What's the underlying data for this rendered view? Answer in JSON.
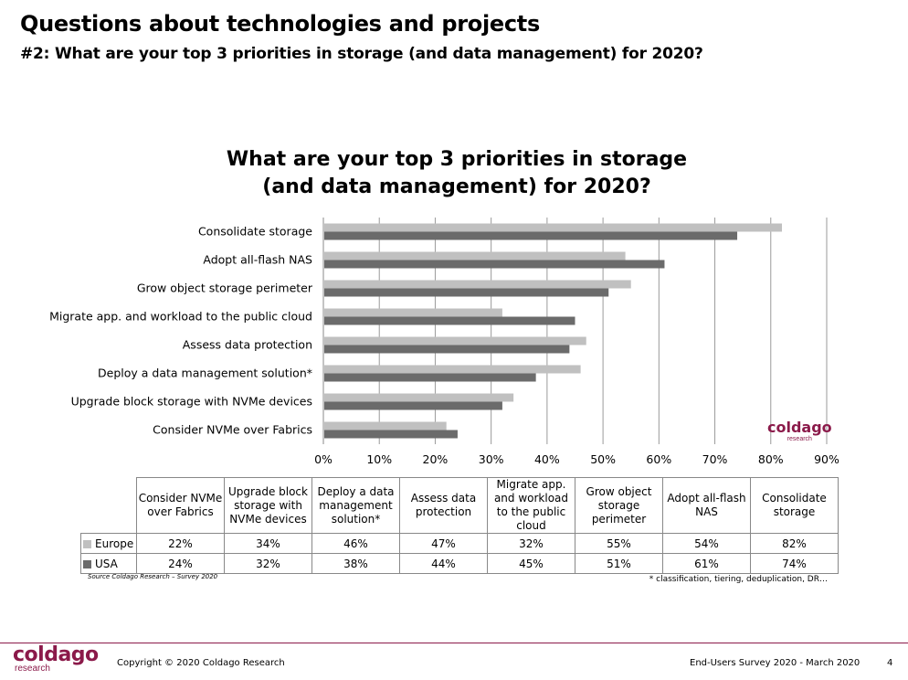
{
  "header": {
    "title": "Questions about technologies and projects",
    "subtitle": "#2: What are your top 3 priorities in storage (and data management) for 2020?"
  },
  "chart_data": {
    "type": "bar",
    "orientation": "horizontal",
    "title_line1": "What are your top 3 priorities in storage",
    "title_line2": "(and data management) for 2020?",
    "categories": [
      "Consolidate storage",
      "Adopt all-flash NAS",
      "Grow object storage perimeter",
      "Migrate app. and workload to the public cloud",
      "Assess data protection",
      "Deploy a data management solution*",
      "Upgrade block storage with NVMe devices",
      "Consider NVMe over Fabrics"
    ],
    "series": [
      {
        "name": "Europe",
        "color": "#c0c0c0",
        "values": [
          82,
          54,
          55,
          32,
          47,
          46,
          34,
          22
        ]
      },
      {
        "name": "USA",
        "color": "#6b6b6b",
        "values": [
          74,
          61,
          51,
          45,
          44,
          38,
          32,
          24
        ]
      }
    ],
    "xlim": [
      0,
      90
    ],
    "xticks": [
      "0%",
      "10%",
      "20%",
      "30%",
      "40%",
      "50%",
      "60%",
      "70%",
      "80%",
      "90%"
    ],
    "grid": true
  },
  "chart_logo": {
    "word": "coldago",
    "sub": "research"
  },
  "table": {
    "headers": [
      "Consider NVMe over Fabrics",
      "Upgrade block storage with NVMe devices",
      "Deploy a data management solution*",
      "Assess data protection",
      "Migrate app. and workload to the public cloud",
      "Grow object storage perimeter",
      "Adopt all-flash NAS",
      "Consolidate storage"
    ],
    "rows": [
      {
        "name": "Europe",
        "color": "#c0c0c0",
        "cells": [
          "22%",
          "34%",
          "46%",
          "47%",
          "32%",
          "55%",
          "54%",
          "82%"
        ]
      },
      {
        "name": "USA",
        "color": "#6b6b6b",
        "cells": [
          "24%",
          "32%",
          "38%",
          "44%",
          "45%",
          "51%",
          "61%",
          "74%"
        ]
      }
    ]
  },
  "source": "Source Coldago Research – Survey 2020",
  "footnote": "* classification, tiering, deduplication, DR…",
  "footer": {
    "logo_word": "coldago",
    "logo_sub": "research",
    "copyright": "Copyright © 2020 Coldago Research",
    "survey": "End-Users Survey 2020 - March 2020",
    "page": "4"
  }
}
